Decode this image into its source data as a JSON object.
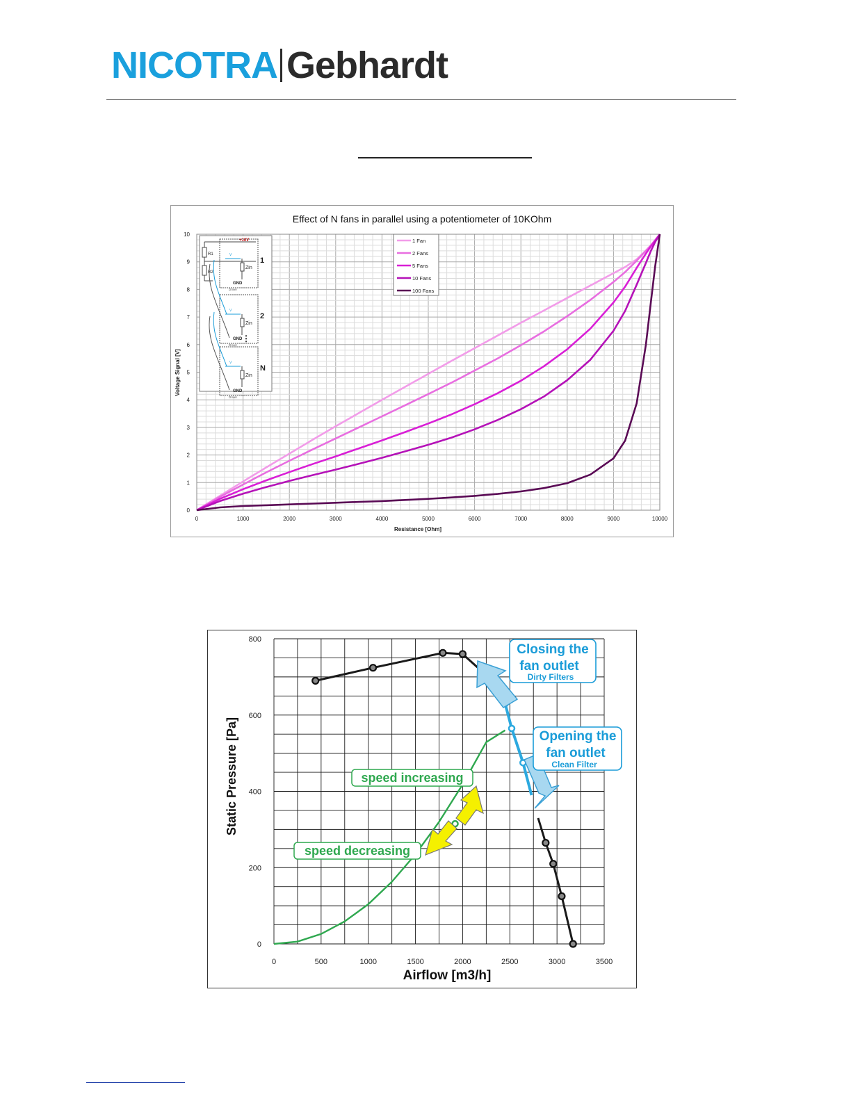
{
  "header": {
    "logo": {
      "left": "NICOTRA",
      "right": "Gebhardt",
      "left_color": "#1aa0dd",
      "right_color": "#2b2b2b"
    }
  },
  "chart_data": [
    {
      "type": "line",
      "title": "Effect of N fans in parallel using a potentiometer of 10KOhm",
      "xlabel": "Resistance  [Ohm]",
      "ylabel": "Voltage Signal [V]",
      "xlim": [
        0,
        10000
      ],
      "ylim": [
        0,
        10
      ],
      "xticks": [
        0,
        1000,
        2000,
        3000,
        4000,
        5000,
        6000,
        7000,
        8000,
        9000,
        10000
      ],
      "yticks": [
        0,
        1,
        2,
        3,
        4,
        5,
        6,
        7,
        8,
        9,
        10
      ],
      "grid": true,
      "legend_position": "top-center",
      "x": [
        0,
        500,
        1000,
        1500,
        2000,
        2500,
        3000,
        3500,
        4000,
        4500,
        5000,
        5500,
        6000,
        6500,
        7000,
        7500,
        8000,
        8500,
        9000,
        9250,
        9500,
        9700,
        9800,
        9900,
        10000
      ],
      "series": [
        {
          "name": "1 Fan",
          "color": "#f29ce9",
          "values": [
            0,
            0.52,
            1.04,
            1.55,
            2.05,
            2.55,
            3.04,
            3.52,
            4.0,
            4.47,
            4.94,
            5.41,
            5.87,
            6.33,
            6.79,
            7.24,
            7.69,
            8.14,
            8.59,
            8.81,
            9.09,
            9.41,
            9.59,
            9.79,
            10
          ]
        },
        {
          "name": "2 Fans",
          "color": "#e86ee0",
          "values": [
            0,
            0.48,
            0.93,
            1.37,
            1.79,
            2.2,
            2.6,
            3.0,
            3.4,
            3.8,
            4.21,
            4.62,
            5.06,
            5.5,
            5.98,
            6.48,
            7.03,
            7.62,
            8.27,
            8.63,
            9.04,
            9.4,
            9.58,
            9.78,
            10
          ]
        },
        {
          "name": "5 Fans",
          "color": "#d91fd6",
          "values": [
            0,
            0.41,
            0.76,
            1.08,
            1.38,
            1.67,
            1.95,
            2.24,
            2.53,
            2.83,
            3.14,
            3.47,
            3.84,
            4.24,
            4.69,
            5.22,
            5.83,
            6.58,
            7.53,
            8.1,
            8.78,
            9.3,
            9.55,
            9.77,
            10
          ]
        },
        {
          "name": "10 Fans",
          "color": "#b512b8",
          "values": [
            0,
            0.33,
            0.6,
            0.84,
            1.06,
            1.27,
            1.47,
            1.68,
            1.9,
            2.13,
            2.37,
            2.63,
            2.93,
            3.27,
            3.66,
            4.12,
            4.71,
            5.45,
            6.5,
            7.22,
            8.17,
            8.96,
            9.37,
            9.72,
            10
          ]
        },
        {
          "name": "100 Fans",
          "color": "#5a0a55",
          "values": [
            0,
            0.1,
            0.15,
            0.18,
            0.21,
            0.24,
            0.27,
            0.3,
            0.33,
            0.37,
            0.41,
            0.46,
            0.52,
            0.59,
            0.68,
            0.8,
            0.98,
            1.29,
            1.88,
            2.52,
            3.87,
            6.0,
            7.44,
            8.83,
            10
          ]
        }
      ],
      "inset_diagram": {
        "supply_label": "+10V",
        "resistor_labels": [
          "R1",
          "R2"
        ],
        "signal_label": "V",
        "impedance_label": "Zin",
        "ground_label": "GND",
        "driver_label": "Driver",
        "fan_labels": [
          "1",
          "2",
          "N"
        ],
        "ellipsis": "⋮"
      }
    },
    {
      "type": "line",
      "xlabel": "Airflow [m3/h]",
      "ylabel": "Static Pressure [Pa]",
      "xlim": [
        0,
        3500
      ],
      "ylim": [
        0,
        800
      ],
      "xticks": [
        0,
        500,
        1000,
        1500,
        2000,
        2500,
        3000,
        3500
      ],
      "yticks": [
        0,
        200,
        400,
        600,
        800
      ],
      "grid": true,
      "fan_curve": {
        "color": "#1a1a1a",
        "points": [
          [
            440,
            690
          ],
          [
            1050,
            724
          ],
          [
            1790,
            763
          ],
          [
            2000,
            760
          ],
          [
            2880,
            265
          ],
          [
            2960,
            210
          ],
          [
            3050,
            125
          ],
          [
            3170,
            0
          ]
        ]
      },
      "fan_curve_mid": {
        "color": "#2ca9df",
        "points": [
          [
            2450,
            630
          ],
          [
            2520,
            565
          ],
          [
            2640,
            475
          ]
        ]
      },
      "system_curve": {
        "color": "#2fa84f",
        "x": [
          0,
          250,
          500,
          750,
          1000,
          1250,
          1500,
          1750,
          2000,
          2250,
          2450
        ],
        "y": [
          0,
          6,
          26,
          59,
          104,
          163,
          235,
          320,
          418,
          529,
          560
        ],
        "marker": [
          1920,
          315
        ]
      },
      "annotations": {
        "closing": {
          "line1": "Closing the",
          "line2": "fan outlet",
          "sub": "Dirty Filters",
          "color": "#1a9cd8"
        },
        "opening": {
          "line1": "Opening the",
          "line2": "fan outlet",
          "sub": "Clean Filter",
          "color": "#1a9cd8"
        },
        "increasing": {
          "text": "speed increasing",
          "color": "#2fa84f"
        },
        "decreasing": {
          "text": "speed decreasing",
          "color": "#2fa84f"
        },
        "arrow_blue": "#a8d8f0",
        "arrow_yellow": "#f5f000"
      }
    }
  ]
}
